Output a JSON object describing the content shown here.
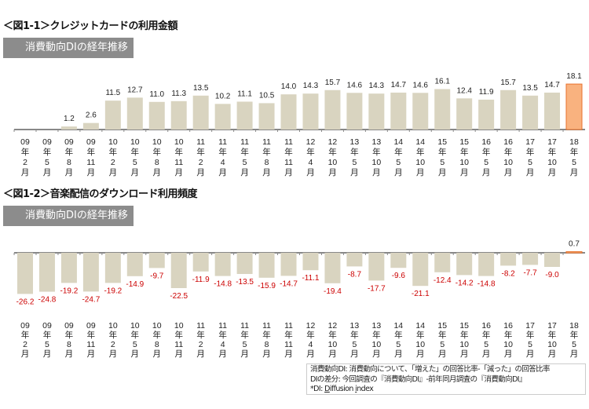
{
  "chart_data": [
    {
      "type": "bar",
      "title": "＜図1-1＞クレジットカードの利用金額",
      "subtitle": "消費動向DIの経年推移",
      "categories": [
        [
          "09",
          "2"
        ],
        [
          "09",
          "5"
        ],
        [
          "09",
          "8"
        ],
        [
          "09",
          "11"
        ],
        [
          "10",
          "2"
        ],
        [
          "10",
          "5"
        ],
        [
          "10",
          "8"
        ],
        [
          "10",
          "11"
        ],
        [
          "11",
          "2"
        ],
        [
          "11",
          "4"
        ],
        [
          "11",
          "5"
        ],
        [
          "11",
          "8"
        ],
        [
          "11",
          "11"
        ],
        [
          "12",
          "4"
        ],
        [
          "12",
          "10"
        ],
        [
          "13",
          "5"
        ],
        [
          "13",
          "10"
        ],
        [
          "14",
          "5"
        ],
        [
          "14",
          "10"
        ],
        [
          "15",
          "5"
        ],
        [
          "15",
          "10"
        ],
        [
          "16",
          "5"
        ],
        [
          "16",
          "10"
        ],
        [
          "17",
          "5"
        ],
        [
          "17",
          "10"
        ],
        [
          "18",
          "5"
        ]
      ],
      "values": [
        null,
        null,
        1.2,
        2.6,
        11.5,
        12.7,
        11.0,
        11.3,
        13.5,
        10.2,
        11.1,
        10.5,
        14.0,
        14.3,
        15.7,
        14.6,
        14.3,
        14.7,
        14.6,
        16.1,
        12.4,
        11.9,
        15.7,
        13.5,
        14.7,
        18.1
      ],
      "highlight_last": true,
      "ylim": [
        0,
        20
      ],
      "grid": false
    },
    {
      "type": "bar",
      "title": "＜図1-2＞音楽配信のダウンロード利用頻度",
      "subtitle": "消費動向DIの経年推移",
      "categories": [
        [
          "09",
          "2"
        ],
        [
          "09",
          "5"
        ],
        [
          "09",
          "8"
        ],
        [
          "09",
          "11"
        ],
        [
          "10",
          "2"
        ],
        [
          "10",
          "5"
        ],
        [
          "10",
          "8"
        ],
        [
          "10",
          "11"
        ],
        [
          "11",
          "2"
        ],
        [
          "11",
          "4"
        ],
        [
          "11",
          "5"
        ],
        [
          "11",
          "8"
        ],
        [
          "11",
          "11"
        ],
        [
          "12",
          "4"
        ],
        [
          "12",
          "10"
        ],
        [
          "13",
          "5"
        ],
        [
          "13",
          "10"
        ],
        [
          "14",
          "5"
        ],
        [
          "14",
          "10"
        ],
        [
          "15",
          "5"
        ],
        [
          "15",
          "10"
        ],
        [
          "16",
          "5"
        ],
        [
          "16",
          "10"
        ],
        [
          "17",
          "5"
        ],
        [
          "17",
          "10"
        ],
        [
          "18",
          "5"
        ]
      ],
      "values": [
        -26.2,
        -24.8,
        -19.2,
        -24.7,
        -19.2,
        -14.9,
        -9.7,
        -22.5,
        -11.9,
        -14.8,
        -13.5,
        -15.9,
        -14.7,
        -11.1,
        -19.4,
        -8.7,
        -17.7,
        -9.6,
        -21.1,
        -12.4,
        -14.2,
        -14.8,
        -8.2,
        -7.7,
        -9.0,
        0.7
      ],
      "highlight_last": true,
      "ylim": [
        -30,
        5
      ],
      "grid": false
    }
  ],
  "labels": {
    "year_suffix": "年",
    "month_suffix": "月"
  },
  "colors": {
    "bar": "#d9d4c0",
    "highlight": "#f9b27f",
    "highlight_edge": "#e8722c",
    "negative_label": "#cc0000",
    "axis": "#888888"
  },
  "note": {
    "line1": "消費動向DI: 消費動向について、「増えた」の回答比率-「減った」の回答比率",
    "line2": "DIの差分: 今回調査の『消費動向DI』-前年同月調査の『消費動向DI』",
    "line3_prefix": "*DI: ",
    "line3_d": "D",
    "line3_mid": "iffusion ",
    "line3_i": "i",
    "line3_end": "ndex"
  }
}
